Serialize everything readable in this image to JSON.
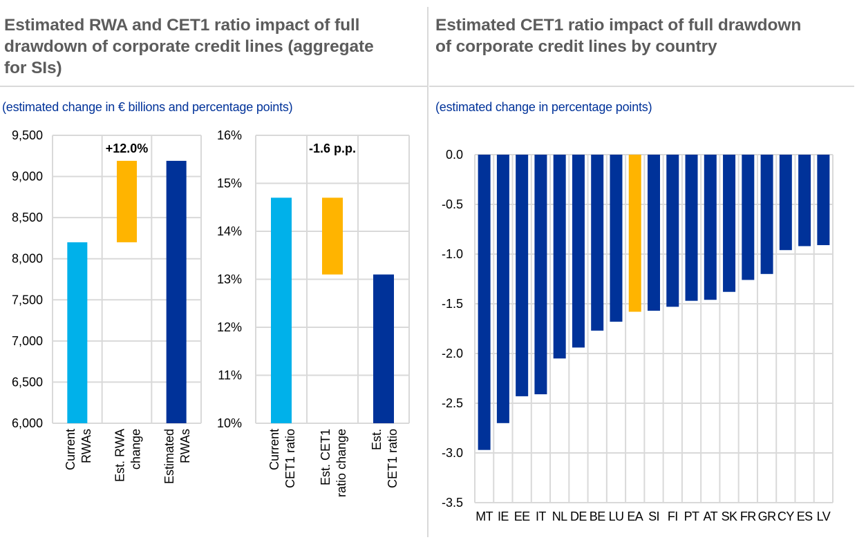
{
  "panels": {
    "left": {
      "title_lines": [
        "Estimated RWA and CET1 ratio impact of full",
        "drawdown of corporate credit lines (aggregate",
        "for SIs)"
      ],
      "subtitle": "(estimated change in € billions and percentage points)"
    },
    "right": {
      "title_lines": [
        "Estimated CET1 ratio impact of full drawdown",
        "of corporate credit lines by country"
      ],
      "subtitle": "(estimated change in percentage points)"
    }
  },
  "colors": {
    "current": "#00b1ea",
    "change": "#ffb400",
    "estimated": "#003299",
    "country": "#003299",
    "euro_area": "#ffb400",
    "title": "#5c5c5c",
    "subtitle": "#003299",
    "grid": "#d9d9d9"
  },
  "chart_data": [
    {
      "type": "bar",
      "subtype": "waterfall",
      "title": "Estimated RWAs (aggregate for SIs)",
      "ylabel": "€ billions",
      "ylim": [
        6000,
        9500
      ],
      "yticks": [
        6000,
        6500,
        7000,
        7500,
        8000,
        8500,
        9000,
        9500
      ],
      "ytick_labels": [
        "6,000",
        "6,500",
        "7,000",
        "7,500",
        "8,000",
        "8,500",
        "9,000",
        "9,500"
      ],
      "categories": [
        [
          "Current",
          "RWAs"
        ],
        [
          "Est. RWA",
          "change"
        ],
        [
          "Estimated",
          "RWAs"
        ]
      ],
      "bars": [
        {
          "name": "Current RWAs",
          "from": 6000,
          "to": 8200,
          "color_key": "current"
        },
        {
          "name": "Est. RWA change",
          "from": 8200,
          "to": 9190,
          "color_key": "change"
        },
        {
          "name": "Estimated RWAs",
          "from": 6000,
          "to": 9190,
          "color_key": "estimated"
        }
      ],
      "annotation": {
        "text": "+12.0%",
        "category_index": 1
      },
      "grid": true
    },
    {
      "type": "bar",
      "subtype": "waterfall",
      "title": "Estimated CET1 ratio (aggregate for SIs)",
      "ylabel": "%",
      "ylim": [
        10,
        16
      ],
      "yticks": [
        10,
        11,
        12,
        13,
        14,
        15,
        16
      ],
      "ytick_labels": [
        "10%",
        "11%",
        "12%",
        "13%",
        "14%",
        "15%",
        "16%"
      ],
      "categories": [
        [
          "Current",
          "CET1 ratio"
        ],
        [
          "Est. CET1",
          "ratio change"
        ],
        [
          "Est.",
          "CET1 ratio"
        ]
      ],
      "bars": [
        {
          "name": "Current CET1 ratio",
          "from": 10,
          "to": 14.7,
          "color_key": "current"
        },
        {
          "name": "Est. CET1 ratio change",
          "from": 13.1,
          "to": 14.7,
          "color_key": "change"
        },
        {
          "name": "Est. CET1 ratio",
          "from": 10,
          "to": 13.1,
          "color_key": "estimated"
        }
      ],
      "annotation": {
        "text": "-1.6 p.p.",
        "category_index": 1
      },
      "grid": true
    },
    {
      "type": "bar",
      "title": "Estimated CET1 ratio impact of full drawdown of corporate credit lines by country",
      "ylabel": "percentage points",
      "ylim": [
        -3.5,
        0.0
      ],
      "yticks": [
        0.0,
        -0.5,
        -1.0,
        -1.5,
        -2.0,
        -2.5,
        -3.0,
        -3.5
      ],
      "ytick_labels": [
        "0.0",
        "-0.5",
        "-1.0",
        "-1.5",
        "-2.0",
        "-2.5",
        "-3.0",
        "-3.5"
      ],
      "categories": [
        "MT",
        "IE",
        "EE",
        "IT",
        "NL",
        "DE",
        "BE",
        "LU",
        "EA",
        "SI",
        "FI",
        "PT",
        "AT",
        "SK",
        "FR",
        "GR",
        "CY",
        "ES",
        "LV"
      ],
      "values": [
        -2.97,
        -2.7,
        -2.43,
        -2.41,
        -2.05,
        -1.94,
        -1.77,
        -1.68,
        -1.58,
        -1.57,
        -1.53,
        -1.47,
        -1.46,
        -1.38,
        -1.26,
        -1.2,
        -0.96,
        -0.92,
        -0.91
      ],
      "highlight": "EA",
      "grid": true
    }
  ]
}
